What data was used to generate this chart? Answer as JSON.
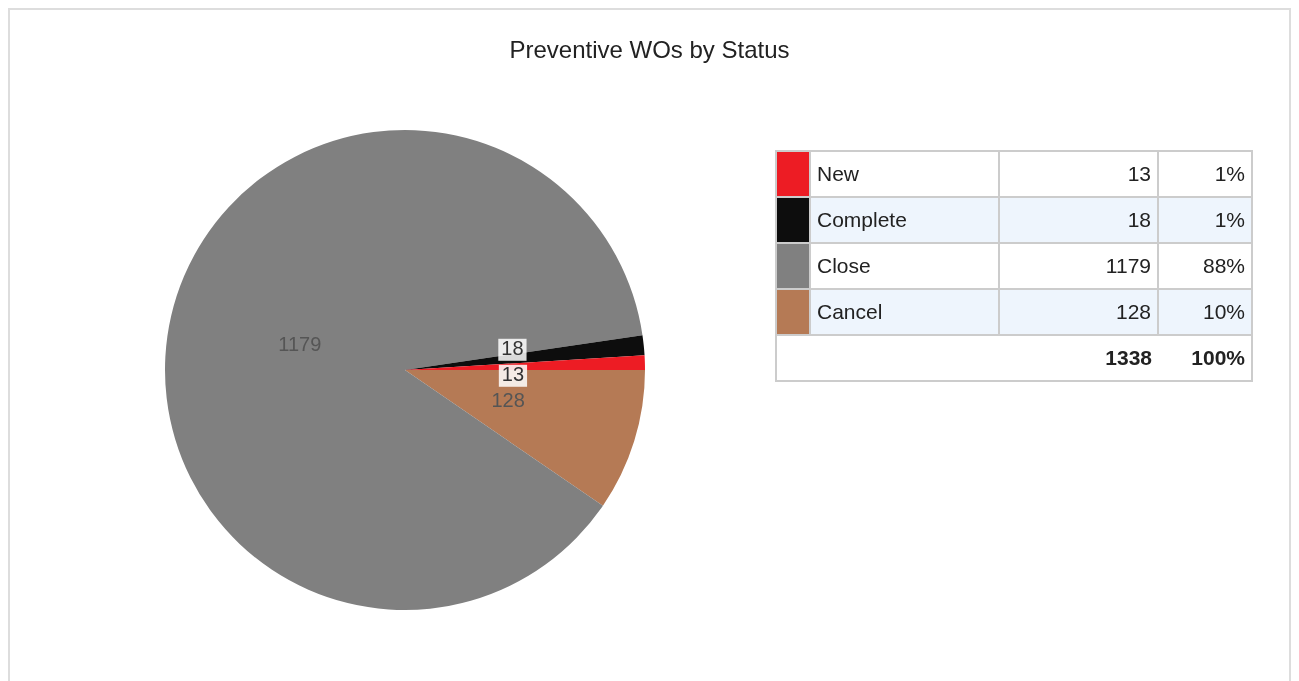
{
  "chart_data": {
    "type": "pie",
    "title": "Preventive WOs by Status",
    "categories": [
      "New",
      "Complete",
      "Close",
      "Cancel"
    ],
    "values": [
      13,
      18,
      1179,
      128
    ],
    "colors": [
      "#ed1c24",
      "#0d0d0d",
      "#808080",
      "#b57a55"
    ],
    "data_labels": true,
    "annotations": [
      "13",
      "1%",
      "18",
      "1%",
      "1179",
      "88%",
      "128",
      "10%"
    ],
    "totals": [
      "1338",
      "100%"
    ],
    "legend": "right"
  }
}
